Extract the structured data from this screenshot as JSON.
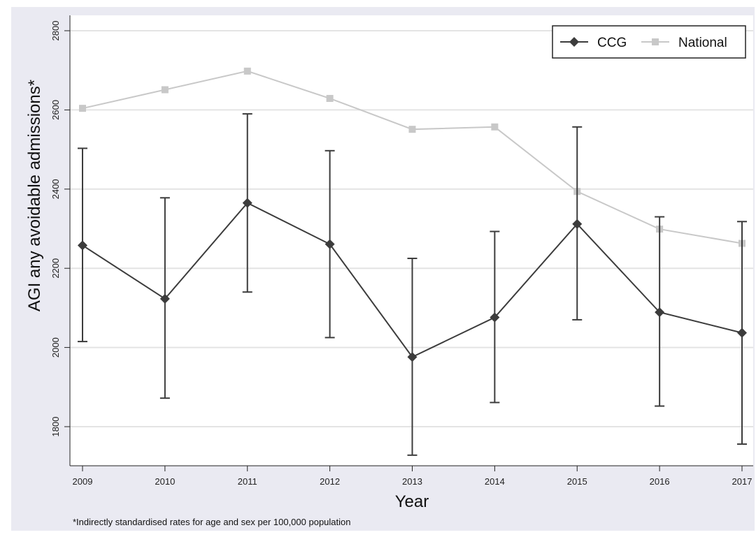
{
  "chart_data": {
    "type": "line",
    "xlabel": "Year",
    "ylabel": "AGI any avoidable admissions*",
    "note": "*Indirectly standardised rates for age and sex per 100,000 population",
    "x": [
      2009,
      2010,
      2011,
      2012,
      2013,
      2014,
      2015,
      2016,
      2017
    ],
    "xlim": [
      2009,
      2017
    ],
    "ylim": [
      1700,
      2820
    ],
    "yticks": [
      1800,
      2000,
      2200,
      2400,
      2600,
      2800
    ],
    "grid": true,
    "legend_position": "top-right",
    "series": [
      {
        "name": "CCG",
        "color": "#3c3c3c",
        "marker": "diamond",
        "values": [
          2258,
          2123,
          2365,
          2261,
          1976,
          2076,
          2312,
          2089,
          2037
        ],
        "ci_lower": [
          2015,
          1872,
          2140,
          2025,
          1728,
          1861,
          2070,
          1852,
          1756
        ],
        "ci_upper": [
          2503,
          2378,
          2590,
          2497,
          2225,
          2293,
          2557,
          2330,
          2318
        ]
      },
      {
        "name": "National",
        "color": "#c8c8c8",
        "marker": "square",
        "values": [
          2604,
          2651,
          2698,
          2629,
          2551,
          2557,
          2394,
          2299,
          2263
        ]
      }
    ]
  }
}
